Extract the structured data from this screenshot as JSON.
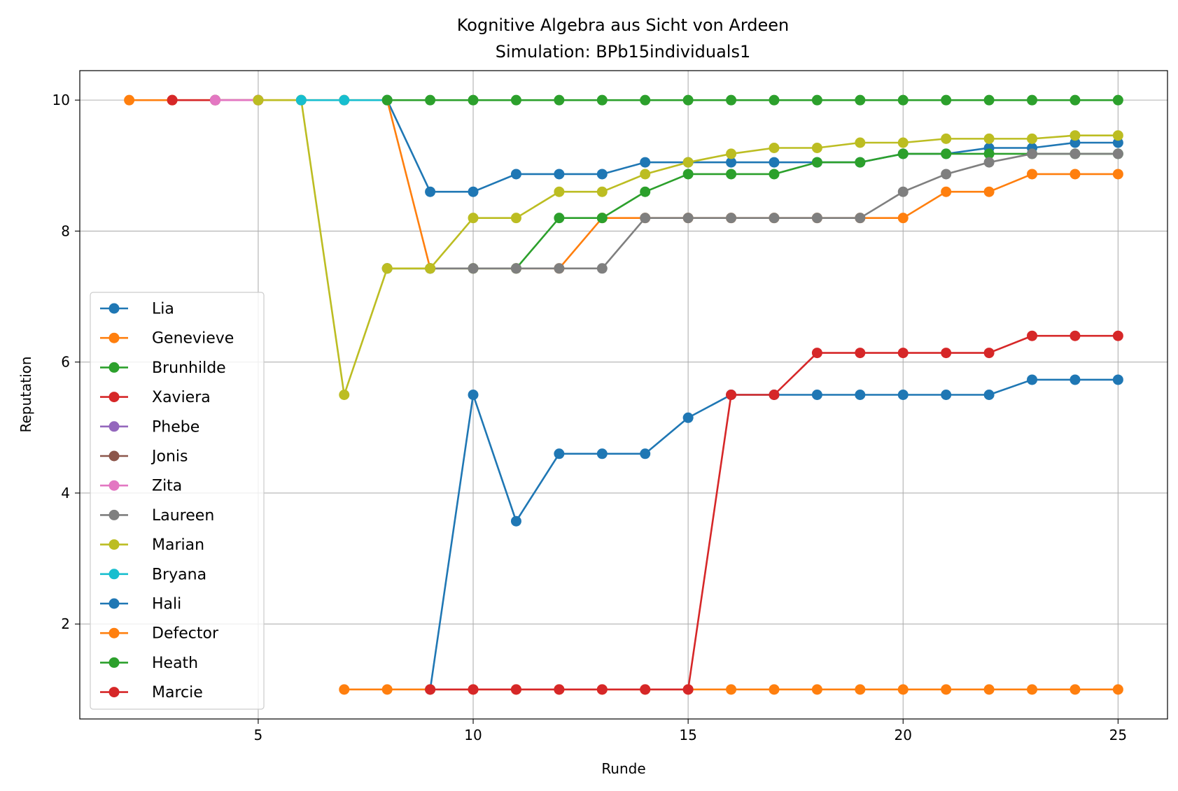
{
  "chart_data": {
    "type": "line",
    "title": "Kognitive Algebra aus Sicht von Ardeen",
    "subtitle": "Simulation: BPb15individuals1",
    "xlabel": "Runde",
    "ylabel": "Reputation",
    "xlim": [
      0.85,
      26.15
    ],
    "ylim": [
      0.55,
      10.45
    ],
    "xticks": [
      5,
      10,
      15,
      20,
      25
    ],
    "yticks": [
      2,
      4,
      6,
      8,
      10
    ],
    "grid": true,
    "legend_position": "lower left",
    "series": [
      {
        "name": "Lia",
        "color": "#1f77b4",
        "x": [
          8,
          9,
          10,
          11,
          12,
          13,
          14,
          15,
          16,
          17,
          18,
          19,
          20,
          21,
          22,
          23,
          24,
          25
        ],
        "y": [
          10,
          8.6,
          8.6,
          8.87,
          8.87,
          8.87,
          9.05,
          9.05,
          9.05,
          9.05,
          9.05,
          9.05,
          9.18,
          9.18,
          9.27,
          9.27,
          9.35,
          9.35
        ]
      },
      {
        "name": "Genevieve",
        "color": "#ff7f0e",
        "x": [
          2,
          3,
          4,
          5,
          6,
          7,
          8,
          9,
          10,
          11,
          12,
          13,
          14,
          15,
          16,
          17,
          18,
          19,
          20,
          21,
          22,
          23,
          24,
          25
        ],
        "y": [
          10,
          10,
          10,
          10,
          10,
          10,
          10,
          7.43,
          7.43,
          7.43,
          7.43,
          8.2,
          8.2,
          8.2,
          8.2,
          8.2,
          8.2,
          8.2,
          8.2,
          8.6,
          8.6,
          8.87,
          8.87,
          8.87
        ]
      },
      {
        "name": "Brunhilde",
        "color": "#2ca02c",
        "x": [
          8,
          9,
          10,
          11,
          12,
          13,
          14,
          15,
          16,
          17,
          18,
          19,
          20,
          21,
          22,
          23,
          24,
          25
        ],
        "y": [
          7.43,
          7.43,
          7.43,
          7.43,
          8.2,
          8.2,
          8.6,
          8.87,
          8.87,
          8.87,
          9.05,
          9.05,
          9.18,
          9.18,
          9.18,
          9.18,
          9.18,
          9.18
        ]
      },
      {
        "name": "Xaviera",
        "color": "#d62728",
        "x": [
          3,
          4
        ],
        "y": [
          10,
          10
        ]
      },
      {
        "name": "Phebe",
        "color": "#9467bd",
        "x": [
          4,
          5
        ],
        "y": [
          10,
          10
        ]
      },
      {
        "name": "Jonis",
        "color": "#8c564b",
        "x": [
          4,
          5
        ],
        "y": [
          10,
          10
        ]
      },
      {
        "name": "Zita",
        "color": "#e377c2",
        "x": [
          4,
          5
        ],
        "y": [
          10,
          10
        ]
      },
      {
        "name": "Laureen",
        "color": "#7f7f7f",
        "x": [
          8,
          9,
          10,
          11,
          12,
          13,
          14,
          15,
          16,
          17,
          18,
          19,
          20,
          21,
          22,
          23,
          24,
          25
        ],
        "y": [
          7.43,
          7.43,
          7.43,
          7.43,
          7.43,
          7.43,
          8.2,
          8.2,
          8.2,
          8.2,
          8.2,
          8.2,
          8.6,
          8.87,
          9.05,
          9.18,
          9.18,
          9.18
        ]
      },
      {
        "name": "Marian",
        "color": "#bcbd22",
        "x": [
          5,
          6,
          7,
          8,
          9,
          10,
          11,
          12,
          13,
          14,
          15,
          16,
          17,
          18,
          19,
          20,
          21,
          22,
          23,
          24,
          25
        ],
        "y": [
          10,
          10,
          5.5,
          7.43,
          7.43,
          8.2,
          8.2,
          8.6,
          8.6,
          8.87,
          9.05,
          9.18,
          9.27,
          9.27,
          9.35,
          9.35,
          9.41,
          9.41,
          9.41,
          9.46,
          9.46
        ]
      },
      {
        "name": "Bryana",
        "color": "#17becf",
        "x": [
          6,
          7,
          8
        ],
        "y": [
          10,
          10,
          10
        ]
      },
      {
        "name": "Hali",
        "color": "#1f77b4",
        "x": [
          9,
          10,
          11,
          12,
          13,
          14,
          15,
          16,
          17,
          18,
          19,
          20,
          21,
          22,
          23,
          24,
          25
        ],
        "y": [
          1,
          5.5,
          3.57,
          4.6,
          4.6,
          4.6,
          5.15,
          5.5,
          5.5,
          5.5,
          5.5,
          5.5,
          5.5,
          5.5,
          5.73,
          5.73,
          5.73
        ]
      },
      {
        "name": "Defector",
        "color": "#ff7f0e",
        "x": [
          7,
          8,
          9,
          10,
          11,
          12,
          13,
          14,
          15,
          16,
          17,
          18,
          19,
          20,
          21,
          22,
          23,
          24,
          25
        ],
        "y": [
          1,
          1,
          1,
          1,
          1,
          1,
          1,
          1,
          1,
          1,
          1,
          1,
          1,
          1,
          1,
          1,
          1,
          1,
          1
        ]
      },
      {
        "name": "Heath",
        "color": "#2ca02c",
        "x": [
          8,
          9,
          10,
          11,
          12,
          13,
          14,
          15,
          16,
          17,
          18,
          19,
          20,
          21,
          22,
          23,
          24,
          25
        ],
        "y": [
          10,
          10,
          10,
          10,
          10,
          10,
          10,
          10,
          10,
          10,
          10,
          10,
          10,
          10,
          10,
          10,
          10,
          10
        ]
      },
      {
        "name": "Marcie",
        "color": "#d62728",
        "x": [
          9,
          10,
          11,
          12,
          13,
          14,
          15,
          16,
          17,
          18,
          19,
          20,
          21,
          22,
          23,
          24,
          25
        ],
        "y": [
          1,
          1,
          1,
          1,
          1,
          1,
          1,
          5.5,
          5.5,
          6.14,
          6.14,
          6.14,
          6.14,
          6.14,
          6.4,
          6.4,
          6.4
        ]
      }
    ]
  }
}
